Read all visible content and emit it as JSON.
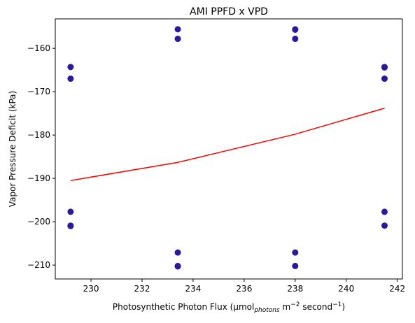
{
  "chart_data": {
    "type": "scatter",
    "title": "AMI PPFD x VPD",
    "xlabel": {
      "main": "Photosynthetic Photon Flux (µmol",
      "sub1": "photons",
      "mid": " m",
      "sup1": "−2",
      "mid2": " second",
      "sup2": "−1",
      "end": ")"
    },
    "ylabel": "Vapor Pressure Deficit (kPa)",
    "xlim": [
      228.6,
      242.2
    ],
    "ylim": [
      -213.2,
      -153.2
    ],
    "x_ticks": [
      230,
      232,
      234,
      236,
      238,
      240,
      242
    ],
    "y_ticks": [
      -210,
      -200,
      -190,
      -180,
      -170,
      -160
    ],
    "grid": false,
    "colors": {
      "points": "#2a1a9a",
      "trend": "#ff0000"
    },
    "series": [
      {
        "kind": "points",
        "points": [
          {
            "x": 229.2,
            "y": -164.3
          },
          {
            "x": 229.2,
            "y": -167.0
          },
          {
            "x": 229.2,
            "y": -197.7
          },
          {
            "x": 229.2,
            "y": -200.9
          },
          {
            "x": 229.2,
            "y": -201.0
          },
          {
            "x": 233.4,
            "y": -155.6
          },
          {
            "x": 233.4,
            "y": -157.8
          },
          {
            "x": 233.4,
            "y": -207.1
          },
          {
            "x": 233.4,
            "y": -210.2
          },
          {
            "x": 233.4,
            "y": -210.3
          },
          {
            "x": 238.0,
            "y": -155.6
          },
          {
            "x": 238.0,
            "y": -155.7
          },
          {
            "x": 238.0,
            "y": -157.8
          },
          {
            "x": 238.0,
            "y": -207.1
          },
          {
            "x": 238.0,
            "y": -210.2
          },
          {
            "x": 241.5,
            "y": -164.3
          },
          {
            "x": 241.5,
            "y": -164.4
          },
          {
            "x": 241.5,
            "y": -167.0
          },
          {
            "x": 241.5,
            "y": -197.7
          },
          {
            "x": 241.5,
            "y": -200.9
          }
        ]
      },
      {
        "kind": "line",
        "points": [
          {
            "x": 229.2,
            "y": -190.5
          },
          {
            "x": 233.4,
            "y": -186.3
          },
          {
            "x": 238.0,
            "y": -179.8
          },
          {
            "x": 241.5,
            "y": -173.8
          }
        ]
      }
    ]
  }
}
